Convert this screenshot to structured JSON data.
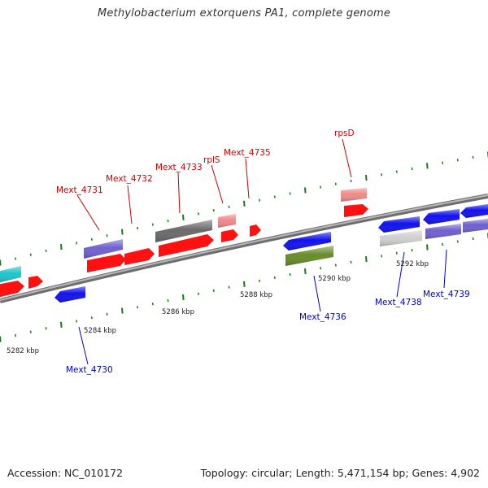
{
  "title": "Methylobacterium extorquens PA1, complete genome",
  "footer": {
    "accession": "Accession: NC_010172",
    "stats": "Topology: circular; Length: 5,471,154 bp; Genes: 4,902"
  },
  "scale_labels": [
    "5282 kbp",
    "5284 kbp",
    "5286 kbp",
    "5288 kbp",
    "5290 kbp",
    "5292 kbp"
  ],
  "gene_labels_top": [
    "Mext_4731",
    "Mext_4732",
    "Mext_4733",
    "rplS",
    "Mext_4735",
    "rpsD"
  ],
  "gene_labels_bottom": [
    "Mext_4730",
    "Mext_4736",
    "Mext_4738",
    "Mext_4739"
  ],
  "colors": {
    "label_top": "#cc0000",
    "label_bottom": "#0000cc",
    "tick": "#1a7a1a",
    "backbone": "#7a7a7a"
  }
}
